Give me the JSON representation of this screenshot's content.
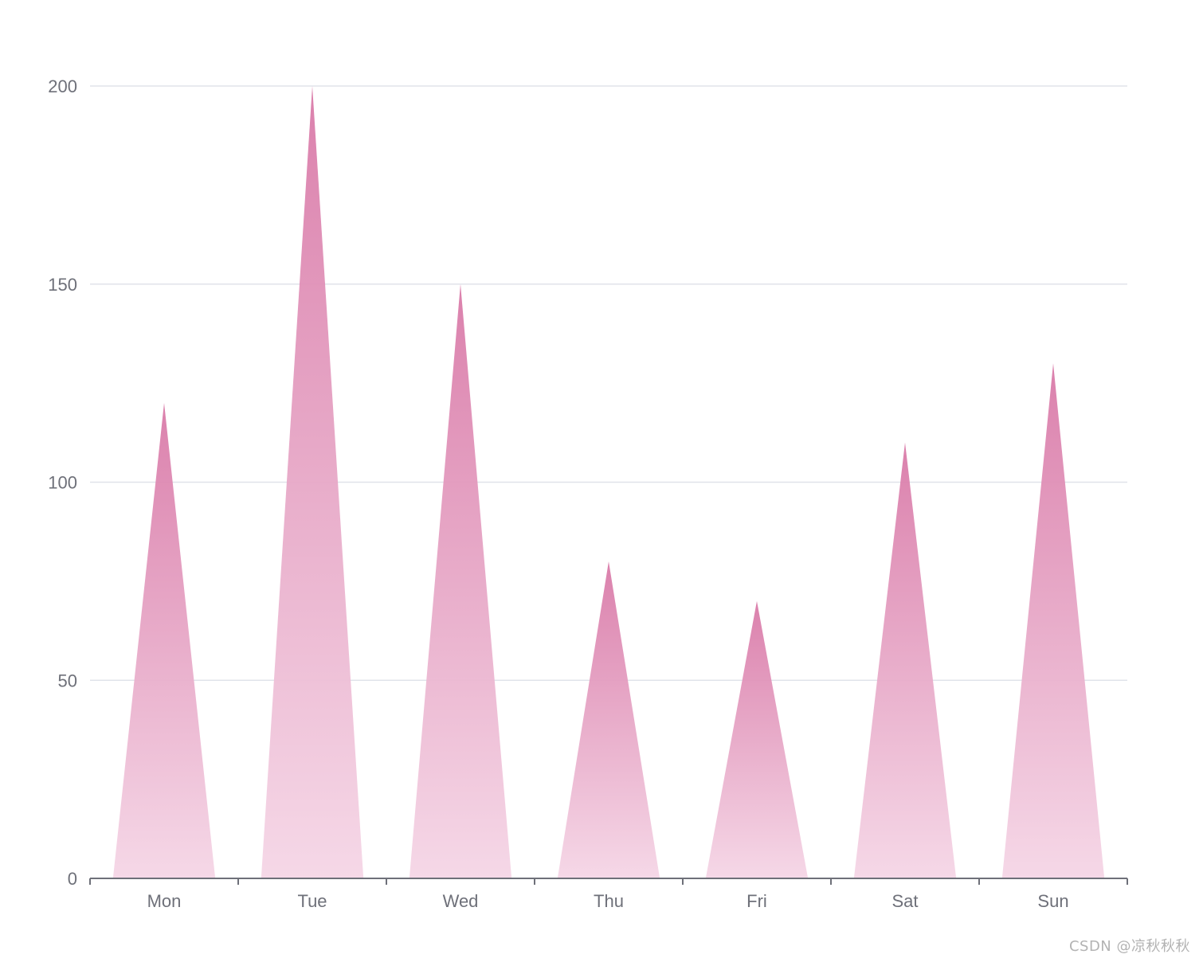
{
  "chart_data": {
    "type": "bar",
    "bar_shape": "triangle",
    "categories": [
      "Mon",
      "Tue",
      "Wed",
      "Thu",
      "Fri",
      "Sat",
      "Sun"
    ],
    "values": [
      120,
      200,
      150,
      80,
      70,
      110,
      130
    ],
    "yticks": [
      "0",
      "50",
      "100",
      "150",
      "200"
    ],
    "ylim": [
      0,
      200
    ],
    "grid": true,
    "colors": {
      "bar_top": "#d97aa8",
      "bar_bottom": "#f5d6e6",
      "grid": "#e0e3ea",
      "axis": "#6e7079",
      "label": "#6e7079"
    }
  },
  "watermark": "CSDN @凉秋秋秋"
}
